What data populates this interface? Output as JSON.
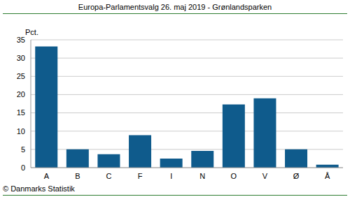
{
  "chart_data": {
    "type": "bar",
    "title": "Europa-Parlamentsvalg 26. maj 2019 - Grønlandsparken",
    "y_label": "Pct.",
    "source": "© Danmarks Statistik",
    "categories": [
      "A",
      "B",
      "C",
      "F",
      "I",
      "N",
      "O",
      "V",
      "Ø",
      "Å"
    ],
    "values": [
      33.2,
      5.0,
      3.7,
      8.9,
      2.5,
      4.6,
      17.3,
      19.0,
      5.0,
      0.8
    ],
    "color": "#0f5b8c",
    "ylim": [
      0,
      35
    ],
    "yticks": [
      0,
      5,
      10,
      15,
      20,
      25,
      30,
      35
    ],
    "grid": true
  }
}
